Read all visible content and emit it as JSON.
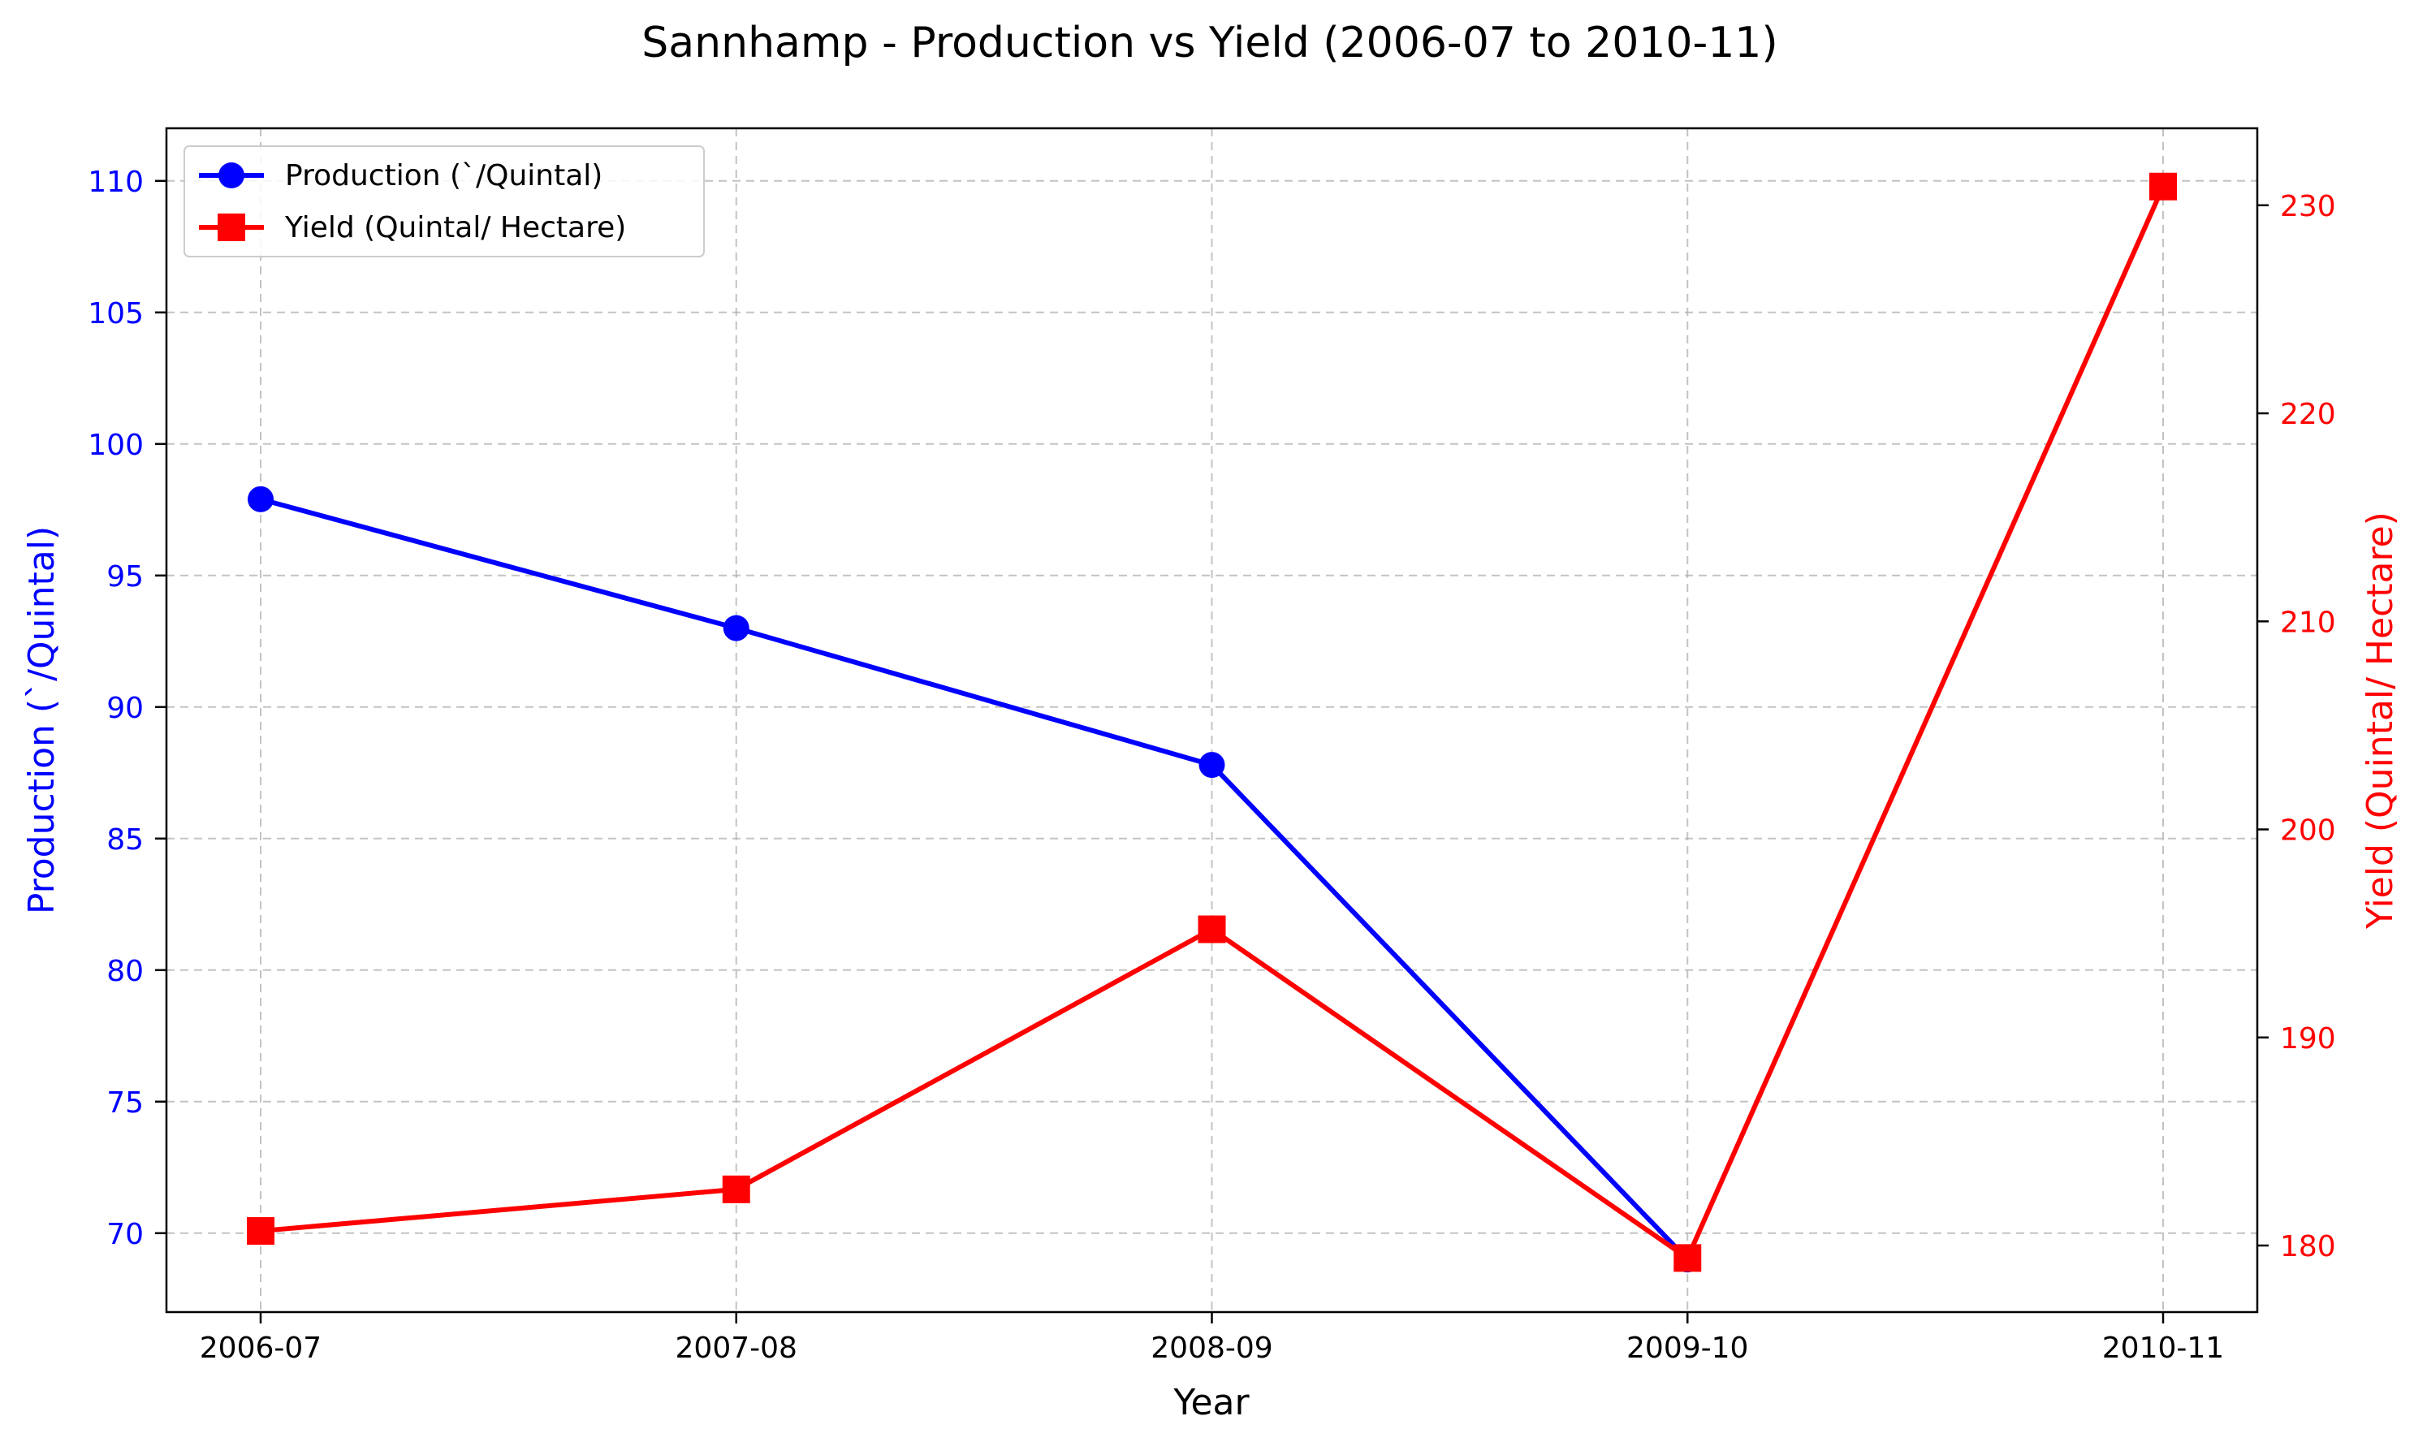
{
  "chart_data": {
    "type": "line",
    "title": "Sannhamp  - Production vs Yield (2006-07 to 2010-11)",
    "xlabel": "Year",
    "categories": [
      "2006-07",
      "2007-08",
      "2008-09",
      "2009-10",
      "2010-11"
    ],
    "y_left": {
      "label": "Production (`/Quintal)",
      "ylim": [
        67,
        112
      ],
      "ticks": [
        70,
        75,
        80,
        85,
        90,
        95,
        100,
        105,
        110
      ],
      "color": "#0000ff"
    },
    "y_right": {
      "label": "Yield (Quintal/ Hectare)",
      "ylim": [
        176.8,
        233.7
      ],
      "ticks": [
        180,
        190,
        200,
        210,
        220,
        230
      ],
      "color": "#ff0000"
    },
    "series": [
      {
        "name": "Production (`/Quintal)",
        "axis": "left",
        "color": "#0000ff",
        "marker": "circle",
        "values": [
          97.9,
          93.0,
          87.8,
          69.0,
          null
        ]
      },
      {
        "name": "Yield (Quintal/ Hectare)",
        "axis": "right",
        "color": "#ff0000",
        "marker": "square",
        "values": [
          180.7,
          182.7,
          195.2,
          179.4,
          230.9
        ]
      }
    ],
    "grid": true,
    "legend_position": "top-left"
  }
}
